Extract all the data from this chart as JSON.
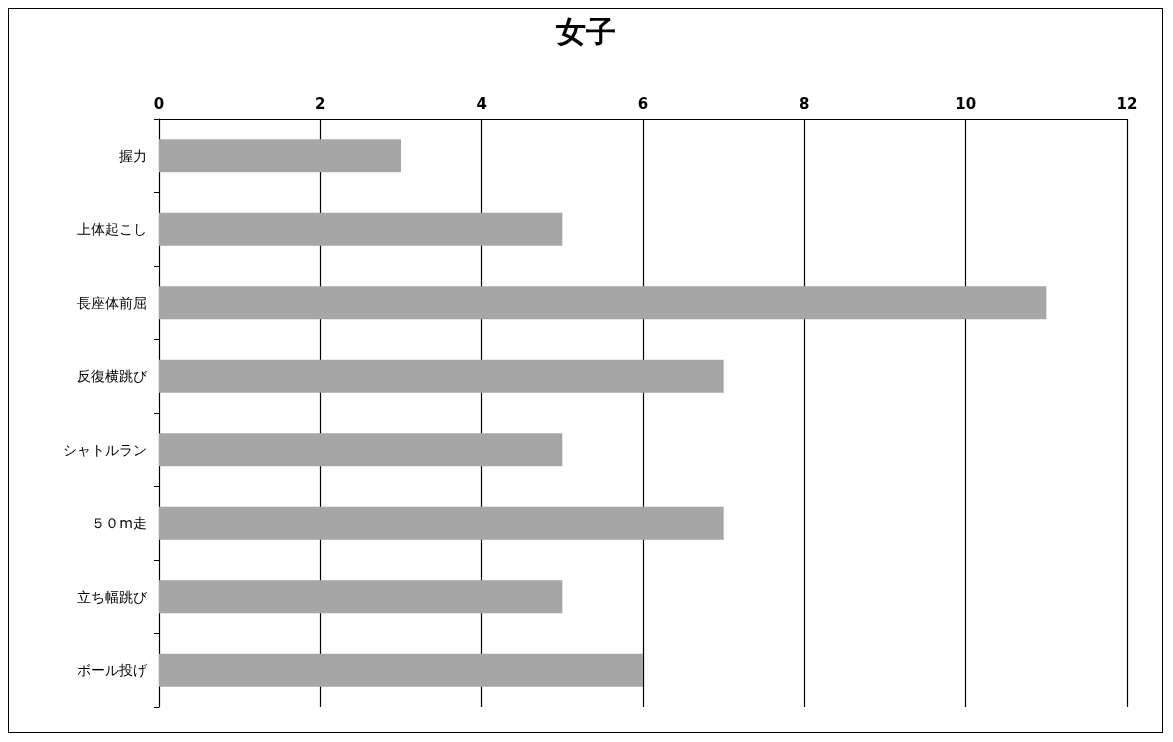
{
  "chart_data": {
    "type": "bar",
    "orientation": "horizontal",
    "title": "女子",
    "categories": [
      "握力",
      "上体起こし",
      "長座体前屈",
      "反復横跳び",
      "シャトルラン",
      "５０m走",
      "立ち幅跳び",
      "ボール投げ"
    ],
    "values": [
      3,
      5,
      11,
      7,
      5,
      7,
      5,
      6
    ],
    "color": "#a6a6a6",
    "xlim": [
      0,
      12
    ],
    "xticks": [
      0,
      2,
      4,
      6,
      8,
      10,
      12
    ],
    "grid": "x"
  }
}
